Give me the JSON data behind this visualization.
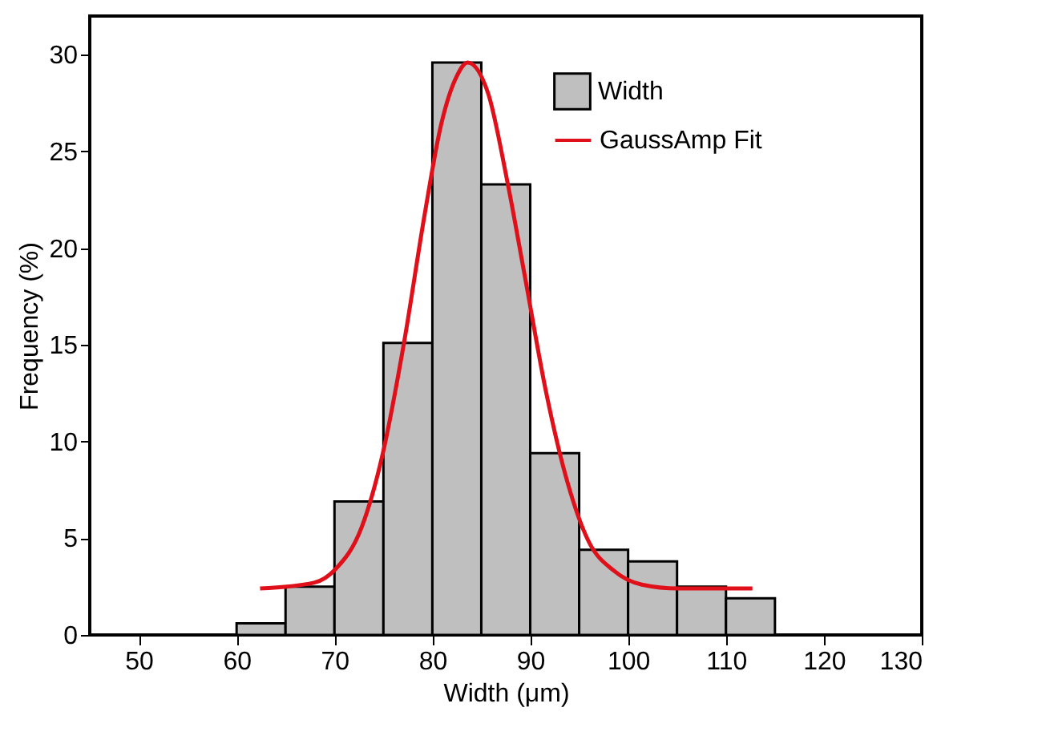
{
  "chart_data": {
    "type": "histogram",
    "xlabel": "Width (μm)",
    "ylabel": "Frequency (%)",
    "bins": [
      60,
      65,
      70,
      75,
      80,
      85,
      90,
      95,
      100,
      105,
      110,
      115
    ],
    "series": [
      {
        "name": "Width",
        "color": "#bfbfbf",
        "values": [
          0.6,
          2.5,
          6.9,
          15.1,
          29.6,
          23.3,
          9.4,
          4.4,
          3.8,
          2.5,
          1.9
        ]
      },
      {
        "name": "GaussAmp Fit",
        "type": "line",
        "color": "#e0101a",
        "x": [
          62.4,
          67.9,
          70.1,
          72.8,
          74.9,
          77.1,
          79.2,
          80.9,
          82.5,
          83.6,
          85.7,
          87.6,
          89.5,
          91.6,
          93.8,
          95.9,
          98.6,
          101.4,
          105.1,
          112.7
        ],
        "values": [
          2.4,
          2.7,
          3.4,
          5.6,
          9.3,
          15.1,
          21.7,
          26.4,
          28.9,
          29.6,
          28.0,
          23.6,
          18.4,
          12.6,
          7.9,
          4.9,
          3.3,
          2.6,
          2.4,
          2.4
        ]
      }
    ],
    "xlim": [
      45,
      130
    ],
    "xticks": [
      50,
      60,
      70,
      80,
      90,
      100,
      110,
      120,
      130
    ],
    "ylim": [
      0,
      32
    ],
    "yticks": [
      0,
      5,
      10,
      15,
      20,
      25,
      30
    ],
    "grid": false,
    "legend": "top right"
  }
}
